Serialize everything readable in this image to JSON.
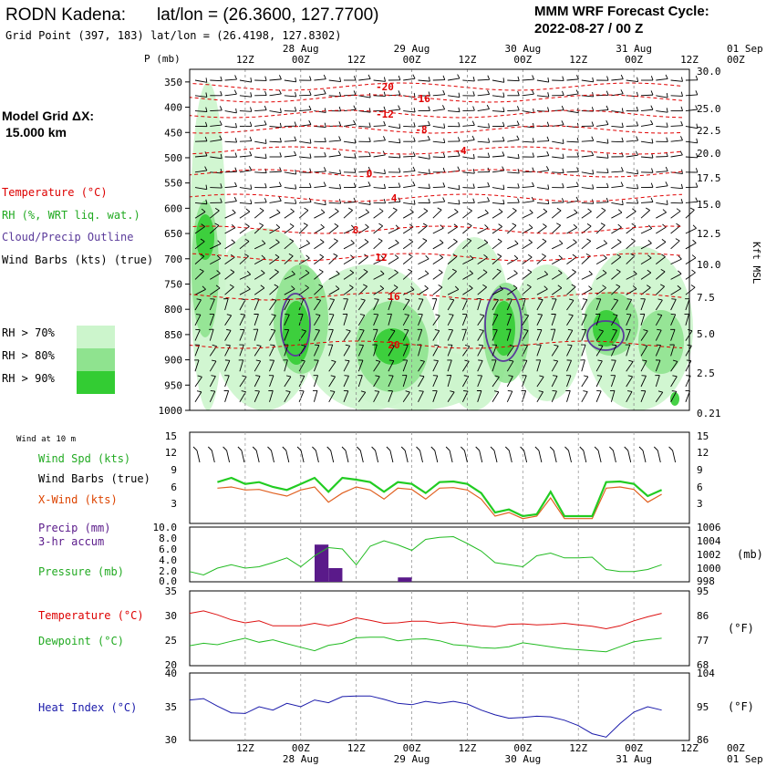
{
  "header": {
    "station": "RODN Kadena:",
    "latlon": "lat/lon = (26.3600, 127.7700)",
    "grid_point": "Grid Point (397, 183) lat/lon = (26.4198, 127.8302)",
    "model_line1": "MMM WRF Forecast Cycle:",
    "model_line2": "2022-08-27 / 00  Z"
  },
  "model_grid": {
    "line1": "Model Grid ΔX:",
    "line2": "15.000 km"
  },
  "time_axis": {
    "hour_labels": [
      "12Z",
      "00Z",
      "12Z",
      "00Z",
      "12Z",
      "00Z",
      "12Z",
      "00Z",
      "12Z",
      "00Z"
    ],
    "date_labels": [
      "28 Aug",
      "29 Aug",
      "30 Aug",
      "31 Aug",
      "01 Sep"
    ],
    "hours_per_step": 3,
    "n_steps": 33
  },
  "upper_panel": {
    "pressure_label": "P (mb)",
    "pressure_levels": [
      350,
      400,
      450,
      500,
      550,
      600,
      650,
      700,
      750,
      800,
      850,
      900,
      950,
      1000
    ],
    "height_levels": [
      "30.0",
      "25.0",
      "22.5",
      "20.0",
      "17.5",
      "15.0",
      "12.5",
      "10.0",
      "7.5",
      "5.0",
      "2.5",
      "0.21"
    ],
    "height_axis_label": "Kft MSL",
    "legend": {
      "temperature": "Temperature (°C)",
      "rh": "RH (%, WRT liq. wat.)",
      "cloud": "Cloud/Precip Outline",
      "wind_barbs": "Wind Barbs (kts) (true)",
      "rh70": "RH > 70%",
      "rh80": "RH > 80%",
      "rh90": "RH > 90%"
    },
    "isotherm_labels": [
      "-20",
      "-16",
      "-12",
      "-8",
      "-4",
      "0",
      "4",
      "8",
      "12",
      "16",
      "20"
    ],
    "colors": {
      "temp": "#e00000",
      "rh70": "#ccf5cc",
      "rh80": "#8fe38f",
      "rh90": "#33cc33",
      "cloud": "#5a3a9a"
    }
  },
  "wind_panel": {
    "title": "Wind at 10 m",
    "label_speed": "Wind Spd (kts)",
    "label_barbs": "Wind Barbs (true)",
    "label_xwind": "X-Wind (kts)",
    "yticks": [
      "15",
      "12",
      "9",
      "6",
      "3"
    ],
    "colors": {
      "speed": "#22cc22",
      "xwind": "#e06020"
    }
  },
  "precip_panel": {
    "label_precip_1": "Precip (mm)",
    "label_precip_2": "3-hr accum",
    "label_pressure": "Pressure (mb)",
    "left_ticks": [
      "10.0",
      "8.0",
      "6.0",
      "4.0",
      "2.0",
      "0.0"
    ],
    "right_ticks": [
      "1006",
      "1004",
      "1002",
      "1000",
      "998"
    ],
    "right_unit": "(mb)",
    "colors": {
      "precip": "#5a1a8a",
      "pressure": "#22bb22"
    }
  },
  "temp_panel": {
    "label_temp": "Temperature (°C)",
    "label_dew": "Dewpoint (°C)",
    "left_ticks": [
      "35",
      "30",
      "25",
      "20"
    ],
    "right_ticks": [
      "95",
      "86",
      "77",
      "68"
    ],
    "right_unit": "(°F)",
    "colors": {
      "temp": "#dd1111",
      "dew": "#22bb22"
    }
  },
  "heat_panel": {
    "label": "Heat Index (°C)",
    "left_ticks": [
      "40",
      "35",
      "30"
    ],
    "right_ticks": [
      "104",
      "95",
      "86"
    ],
    "right_unit": "(°F)",
    "color": "#1a1aaa"
  },
  "chart_data": [
    {
      "type": "line",
      "title": "Wind at 10 m",
      "x_unit": "hours from 2022-08-27 00Z",
      "x": [
        6,
        9,
        12,
        15,
        18,
        21,
        24,
        27,
        30,
        33,
        36,
        39,
        42,
        45,
        48,
        51,
        54,
        57,
        60,
        63,
        66,
        69,
        72,
        75,
        78,
        81,
        84,
        87,
        90,
        93,
        96,
        99,
        102
      ],
      "ylim": [
        0,
        15
      ],
      "series": [
        {
          "name": "Wind Spd (kts)",
          "values": [
            6.8,
            7.5,
            6.5,
            6.8,
            6.0,
            5.5,
            6.5,
            7.5,
            5.2,
            7.5,
            7.2,
            6.8,
            5.2,
            6.8,
            6.5,
            5.0,
            6.8,
            6.9,
            6.5,
            5.0,
            1.8,
            2.3,
            1.2,
            1.5,
            5.2,
            1.2,
            1.2,
            1.2,
            6.8,
            6.9,
            6.5,
            4.5,
            5.5
          ]
        },
        {
          "name": "X-Wind (kts)",
          "values": [
            5.8,
            6.0,
            5.5,
            5.6,
            5.0,
            4.5,
            5.5,
            6.0,
            3.5,
            5.0,
            6.0,
            5.5,
            4.0,
            5.8,
            5.6,
            4.0,
            5.8,
            5.9,
            5.5,
            4.0,
            1.2,
            1.8,
            0.8,
            1.2,
            4.2,
            0.8,
            0.8,
            0.8,
            5.8,
            6.0,
            5.6,
            3.5,
            4.8
          ]
        }
      ]
    },
    {
      "type": "bar",
      "title": "Precip (mm) 3-hr accum",
      "x": [
        27,
        30,
        45
      ],
      "values": [
        6.8,
        2.5,
        0.8
      ],
      "ylim": [
        0,
        10
      ]
    },
    {
      "type": "line",
      "title": "Pressure (mb)",
      "x": [
        0,
        3,
        6,
        9,
        12,
        15,
        18,
        21,
        24,
        27,
        30,
        33,
        36,
        39,
        42,
        45,
        48,
        51,
        54,
        57,
        60,
        63,
        66,
        69,
        72,
        75,
        78,
        81,
        84,
        87,
        90,
        93,
        96,
        99,
        102
      ],
      "ylim": [
        998,
        1006
      ],
      "series": [
        {
          "name": "Pressure (mb)",
          "values": [
            999.5,
            999.0,
            1000.0,
            1000.5,
            1000.0,
            1000.2,
            1000.8,
            1001.5,
            1000.2,
            1001.8,
            1003.0,
            1002.8,
            1000.5,
            1003.2,
            1004.0,
            1003.4,
            1002.6,
            1004.2,
            1004.5,
            1004.6,
            1003.6,
            1002.5,
            1000.8,
            1000.5,
            1000.2,
            1001.8,
            1002.2,
            1001.5,
            1001.5,
            1001.6,
            999.8,
            999.5,
            999.5,
            999.8,
            1000.5
          ]
        }
      ]
    },
    {
      "type": "line",
      "title": "Temperature / Dewpoint (°C)",
      "x": [
        0,
        3,
        6,
        9,
        12,
        15,
        18,
        21,
        24,
        27,
        30,
        33,
        36,
        39,
        42,
        45,
        48,
        51,
        54,
        57,
        60,
        63,
        66,
        69,
        72,
        75,
        78,
        81,
        84,
        87,
        90,
        93,
        96,
        99,
        102
      ],
      "ylim": [
        20,
        35
      ],
      "series": [
        {
          "name": "Temperature (°C)",
          "values": [
            30.5,
            31.0,
            30.2,
            29.2,
            28.6,
            29.0,
            28.0,
            28.0,
            28.0,
            28.5,
            28.0,
            28.6,
            29.6,
            29.1,
            28.5,
            28.6,
            28.9,
            28.9,
            28.5,
            28.7,
            28.3,
            28.0,
            27.8,
            28.3,
            28.4,
            28.2,
            28.3,
            28.5,
            28.2,
            27.9,
            27.4,
            28.0,
            29.0,
            29.8,
            30.5
          ]
        },
        {
          "name": "Dewpoint (°C)",
          "values": [
            24.0,
            24.5,
            24.2,
            24.9,
            25.5,
            24.7,
            25.2,
            24.4,
            23.7,
            23.0,
            24.1,
            24.5,
            25.6,
            25.7,
            25.7,
            25.0,
            25.3,
            25.4,
            25.0,
            24.2,
            24.0,
            23.6,
            23.5,
            23.8,
            24.6,
            24.2,
            23.8,
            23.4,
            23.2,
            23.0,
            22.8,
            23.8,
            24.8,
            25.2,
            25.5
          ]
        }
      ]
    },
    {
      "type": "line",
      "title": "Heat Index (°C)",
      "x": [
        0,
        3,
        6,
        9,
        12,
        15,
        18,
        21,
        24,
        27,
        30,
        33,
        36,
        39,
        42,
        45,
        48,
        51,
        54,
        57,
        60,
        63,
        66,
        69,
        72,
        75,
        78,
        81,
        84,
        87,
        90,
        93,
        96,
        99,
        102
      ],
      "ylim": [
        30,
        40
      ],
      "series": [
        {
          "name": "Heat Index (°C)",
          "values": [
            36.0,
            36.2,
            35.1,
            34.1,
            34.0,
            35.0,
            34.5,
            35.5,
            35.0,
            36.0,
            35.6,
            36.5,
            36.6,
            36.6,
            36.1,
            35.5,
            35.3,
            35.8,
            35.5,
            35.8,
            35.4,
            34.5,
            33.8,
            33.3,
            33.4,
            33.6,
            33.5,
            33.0,
            32.2,
            31.0,
            30.5,
            32.5,
            34.2,
            35.0,
            34.5
          ]
        }
      ]
    }
  ]
}
